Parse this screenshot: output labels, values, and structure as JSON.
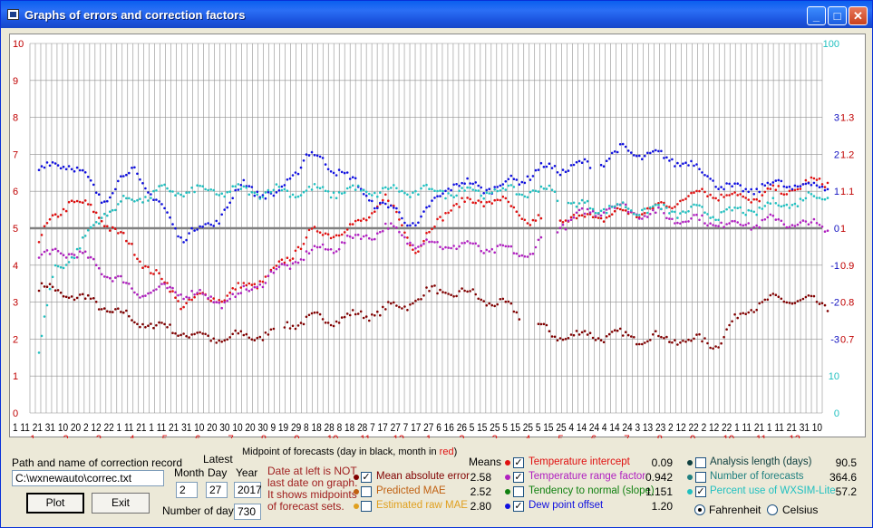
{
  "window": {
    "title": "Graphs of errors and correction factors",
    "min_glyph": "_",
    "max_glyph": "□",
    "close_glyph": "✕"
  },
  "graph": {
    "left_axis": [
      "10",
      "9",
      "8",
      "7",
      "6",
      "5",
      "4",
      "3",
      "2",
      "1",
      "0"
    ],
    "right_axis": [
      {
        "a": "100",
        "b": ""
      },
      {
        "a": "",
        "b": ""
      },
      {
        "a": "3",
        "b": "1.3"
      },
      {
        "a": "2",
        "b": "1.2"
      },
      {
        "a": "1",
        "b": "1.1"
      },
      {
        "a": "0",
        "b": "1"
      },
      {
        "a": "-1",
        "b": "0.9"
      },
      {
        "a": "-2",
        "b": "0.8"
      },
      {
        "a": "-3",
        "b": "0.7"
      },
      {
        "a": "10",
        "b": ""
      },
      {
        "a": "0",
        "b": ""
      }
    ],
    "day_labels": "1 11 21 31 10 20 2 12 22 1 11 21 1 11 21 31 10 20 30 10 20 30 9 19 29 8 18 28 8 18 28 7 17 27 7 17 27 6 16 26 5 15 25 5 15 25 5 15 25 4 14 24 4 14 24 3 13 23 2 12 22 2 12 22 1 11 21 1 11 21 31 10",
    "months": [
      "1",
      "2",
      "3",
      "4",
      "5",
      "6",
      "7",
      "8",
      "9",
      "10",
      "11",
      "12",
      "1",
      "2",
      "3",
      "4",
      "5",
      "6",
      "7",
      "8",
      "9",
      "10",
      "11",
      "12"
    ],
    "colors": {
      "mae": "#800000",
      "intercept": "#E01010",
      "range": "#B020C0",
      "dew": "#1010E0",
      "pct": "#20C0C0",
      "grid": "#909090",
      "zero": "#808080"
    }
  },
  "controls": {
    "path_label": "Path and name of correction record",
    "path_value": "C:\\wxnewauto\\correc.txt",
    "plot_button": "Plot",
    "exit_button": "Exit",
    "latest_label": "Latest",
    "month_label": "Month",
    "day_label": "Day",
    "year_label": "Year",
    "month_value": "2",
    "day_value": "27",
    "year_value": "2017",
    "num_days_label": "Number of days",
    "num_days_value": "730",
    "midpoint_caption_a": "Midpoint of forecasts (day in black, month in ",
    "midpoint_caption_b": "red",
    "midpoint_caption_c": ")",
    "note_lines": [
      "Date at left is NOT",
      "last date on graph.",
      "It shows midpoints",
      "of forecast sets."
    ],
    "means_label": "Means"
  },
  "series_a": [
    {
      "label": "Mean absolute error",
      "value": "2.58",
      "checked": true,
      "color": "#800000"
    },
    {
      "label": "Predicted MAE",
      "value": "2.52",
      "checked": false,
      "color": "#C06010"
    },
    {
      "label": "Estimated raw MAE",
      "value": "2.80",
      "checked": false,
      "color": "#E0A020"
    }
  ],
  "series_b": [
    {
      "label": "Temperature intercept",
      "value": "0.09",
      "checked": true,
      "color": "#E01010"
    },
    {
      "label": "Temperature range factor",
      "value": "0.942",
      "checked": true,
      "color": "#B020C0"
    },
    {
      "label": "Tendency to normal (slope)",
      "value": "1.151",
      "checked": false,
      "color": "#108010"
    },
    {
      "label": "Dew point offset",
      "value": "1.20",
      "checked": true,
      "color": "#1010E0"
    }
  ],
  "series_c": [
    {
      "label": "Analysis length (days)",
      "value": "90.5",
      "checked": false,
      "color": "#104040"
    },
    {
      "label": "Number of forecasts",
      "value": "364.6",
      "checked": false,
      "color": "#208080"
    },
    {
      "label": "Percent use of WXSIM-Lite",
      "value": "57.2",
      "checked": true,
      "color": "#20C0C0"
    }
  ],
  "units": {
    "fahrenheit": "Fahrenheit",
    "celsius": "Celsius",
    "selected": "fahrenheit"
  }
}
